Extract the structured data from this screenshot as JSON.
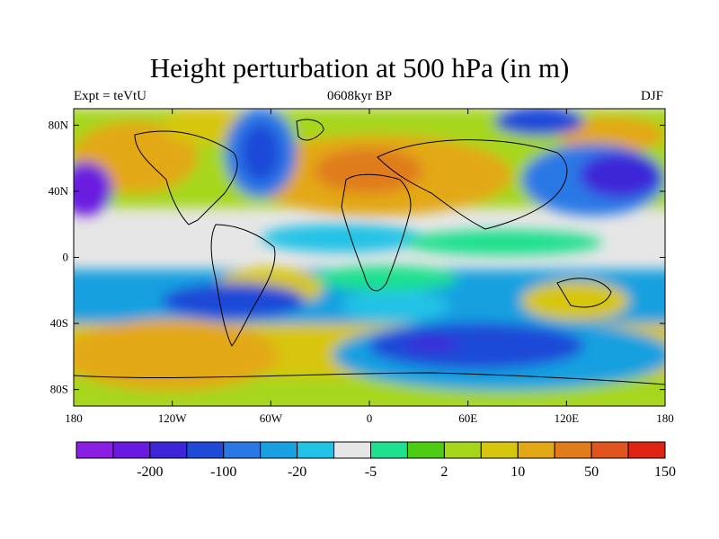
{
  "title": "Height perturbation at 500 hPa (in m)",
  "subtitle_left": "Expt = teVtU",
  "subtitle_center": "0608kyr BP",
  "subtitle_right": "DJF",
  "lon_ticks": [
    {
      "value": -180,
      "label": "180"
    },
    {
      "value": -120,
      "label": "120W"
    },
    {
      "value": -60,
      "label": "60W"
    },
    {
      "value": 0,
      "label": "0"
    },
    {
      "value": 60,
      "label": "60E"
    },
    {
      "value": 120,
      "label": "120E"
    },
    {
      "value": 180,
      "label": "180"
    }
  ],
  "lat_ticks": [
    {
      "value": 80,
      "label": "80N"
    },
    {
      "value": 40,
      "label": "40N"
    },
    {
      "value": 0,
      "label": "0"
    },
    {
      "value": -40,
      "label": "40S"
    },
    {
      "value": -80,
      "label": "80S"
    }
  ],
  "colorbar": {
    "colors": [
      "#8a1fe3",
      "#6a1ae0",
      "#3d26d8",
      "#1f4ad8",
      "#2a78e6",
      "#18a0e0",
      "#22c2e6",
      "#e6e6e6",
      "#1ee08e",
      "#4ccc12",
      "#a6d71a",
      "#d7c60e",
      "#e3a816",
      "#e07c1c",
      "#e0541e",
      "#e02414"
    ],
    "labels": [
      {
        "after_index": 1,
        "label": "-200"
      },
      {
        "after_index": 3,
        "label": "-100"
      },
      {
        "after_index": 5,
        "label": "-20"
      },
      {
        "after_index": 7,
        "label": "-5"
      },
      {
        "after_index": 9,
        "label": "2"
      },
      {
        "after_index": 11,
        "label": "10"
      },
      {
        "after_index": 13,
        "label": "50"
      },
      {
        "after_index": 15,
        "label": "150"
      }
    ]
  }
}
